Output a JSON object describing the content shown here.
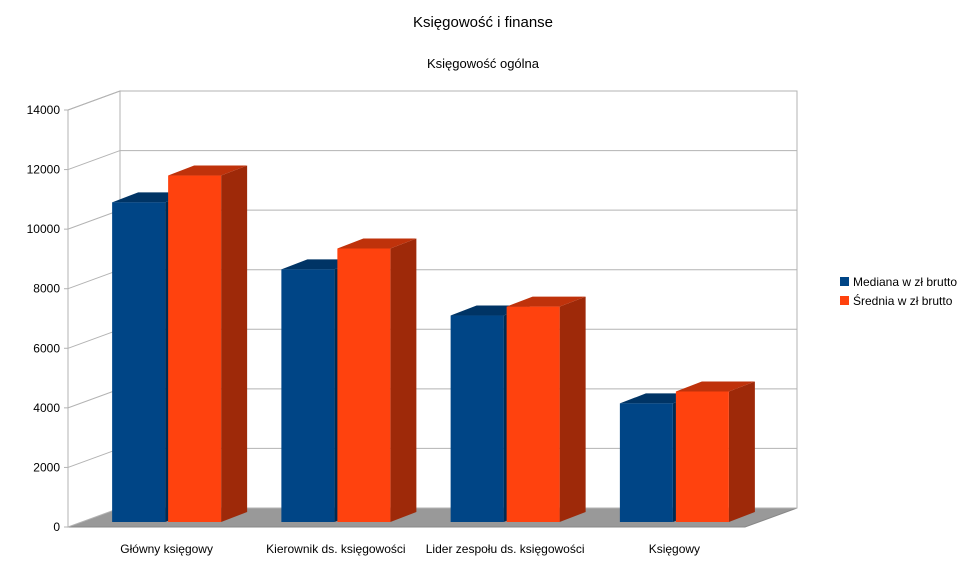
{
  "chart_data": {
    "type": "bar",
    "title": "Księgowość i finanse",
    "subtitle": "Księgowość ogólna",
    "categories": [
      "Główny księgowy",
      "Kierownik ds. księgowości",
      "Lider zespołu ds. księgowości",
      "Księgowy"
    ],
    "series": [
      {
        "name": "Mediana w zł brutto",
        "values": [
          10900,
          8650,
          7100,
          4150
        ],
        "color": "#004586"
      },
      {
        "name": "Średnia w zł brutto",
        "values": [
          11800,
          9350,
          7400,
          4550
        ],
        "color": "#ff420e"
      }
    ],
    "ylim": [
      0,
      14000
    ],
    "yticks": [
      "0",
      "2000",
      "4000",
      "6000",
      "8000",
      "10000",
      "12000",
      "14000"
    ],
    "grid": true,
    "legend_position": "right",
    "style": "3d"
  }
}
